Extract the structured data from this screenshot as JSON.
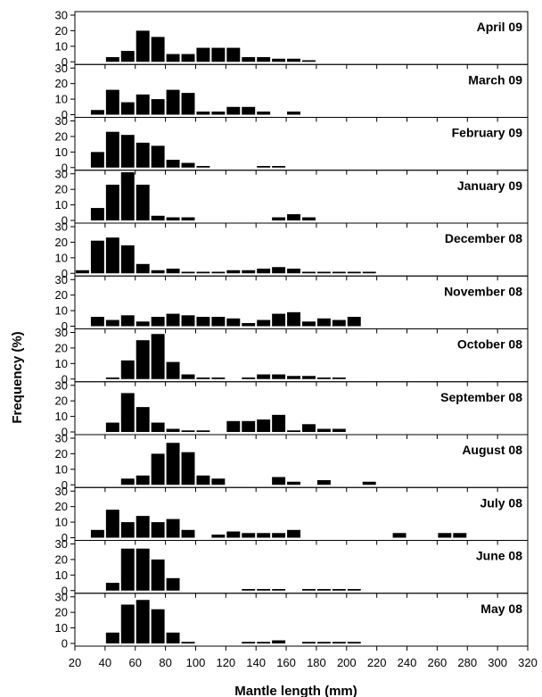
{
  "chart_data": {
    "type": "bar",
    "xlabel": "Mantle length (mm)",
    "ylabel": "Frequency (%)",
    "xlim": [
      20,
      320
    ],
    "xticks": [
      20,
      40,
      60,
      80,
      100,
      120,
      140,
      160,
      180,
      200,
      220,
      240,
      260,
      280,
      300,
      320
    ],
    "ylim": [
      0,
      30
    ],
    "yticks": [
      0,
      10,
      20,
      30
    ],
    "bin_width": 10,
    "bar_color": "#000000",
    "panels": [
      {
        "title": "April 09",
        "bins": [
          45,
          55,
          65,
          75,
          85,
          95,
          105,
          115,
          125,
          135,
          145,
          155,
          165,
          175
        ],
        "values": [
          3,
          7,
          20,
          16,
          5,
          5,
          9,
          9,
          9,
          3,
          3,
          2,
          2,
          1
        ]
      },
      {
        "title": "March 09",
        "bins": [
          35,
          45,
          55,
          65,
          75,
          85,
          95,
          105,
          115,
          125,
          135,
          145,
          165
        ],
        "values": [
          3,
          16,
          8,
          13,
          10,
          16,
          14,
          2,
          2,
          5,
          5,
          2,
          2
        ]
      },
      {
        "title": "February 09",
        "bins": [
          35,
          45,
          55,
          65,
          75,
          85,
          95,
          105,
          145,
          155
        ],
        "values": [
          10,
          23,
          21,
          16,
          14,
          5,
          3,
          1,
          1,
          1
        ]
      },
      {
        "title": "January 09",
        "bins": [
          35,
          45,
          55,
          65,
          75,
          85,
          95,
          155,
          165,
          175
        ],
        "values": [
          8,
          23,
          31,
          23,
          3,
          2,
          2,
          2,
          4,
          2
        ]
      },
      {
        "title": "December 08",
        "bins": [
          25,
          35,
          45,
          55,
          65,
          75,
          85,
          95,
          105,
          115,
          125,
          135,
          145,
          155,
          165,
          175,
          185,
          195,
          205,
          215
        ],
        "values": [
          2,
          21,
          23,
          18,
          6,
          2,
          3,
          1,
          1,
          1,
          2,
          2,
          3,
          4,
          3,
          1,
          1,
          1,
          1,
          1
        ]
      },
      {
        "title": "November 08",
        "bins": [
          35,
          45,
          55,
          65,
          75,
          85,
          95,
          105,
          115,
          125,
          135,
          145,
          155,
          165,
          175,
          185,
          195,
          205
        ],
        "values": [
          6,
          4,
          7,
          3,
          6,
          8,
          7,
          6,
          6,
          5,
          2,
          4,
          8,
          9,
          3,
          5,
          4,
          6
        ]
      },
      {
        "title": "October 08",
        "bins": [
          45,
          55,
          65,
          75,
          85,
          95,
          105,
          115,
          135,
          145,
          155,
          165,
          175,
          185,
          195
        ],
        "values": [
          1,
          12,
          25,
          29,
          11,
          3,
          1,
          1,
          1,
          3,
          3,
          2,
          2,
          1,
          1
        ]
      },
      {
        "title": "September 08",
        "bins": [
          45,
          55,
          65,
          75,
          85,
          95,
          105,
          125,
          135,
          145,
          155,
          165,
          175,
          185,
          195
        ],
        "values": [
          6,
          25,
          16,
          6,
          2,
          1,
          1,
          7,
          7,
          8,
          11,
          1,
          5,
          2,
          2
        ]
      },
      {
        "title": "August 08",
        "bins": [
          55,
          65,
          75,
          85,
          95,
          105,
          115,
          155,
          165,
          185,
          215
        ],
        "values": [
          4,
          6,
          20,
          27,
          21,
          6,
          4,
          5,
          2,
          3,
          2
        ]
      },
      {
        "title": "July 08",
        "bins": [
          35,
          45,
          55,
          65,
          75,
          85,
          95,
          115,
          125,
          135,
          145,
          155,
          165,
          235,
          265,
          275
        ],
        "values": [
          5,
          18,
          10,
          14,
          10,
          12,
          5,
          2,
          4,
          3,
          3,
          3,
          5,
          3,
          3,
          3
        ]
      },
      {
        "title": "June 08",
        "bins": [
          45,
          55,
          65,
          75,
          85,
          135,
          145,
          155,
          175,
          185,
          195,
          205
        ],
        "values": [
          5,
          27,
          27,
          20,
          8,
          1,
          1,
          1,
          1,
          1,
          1,
          1
        ]
      },
      {
        "title": "May 08",
        "bins": [
          45,
          55,
          65,
          75,
          85,
          95,
          135,
          145,
          155,
          175,
          185,
          195,
          205
        ],
        "values": [
          7,
          25,
          28,
          22,
          7,
          1,
          1,
          1,
          2,
          1,
          1,
          1,
          1
        ]
      }
    ]
  }
}
